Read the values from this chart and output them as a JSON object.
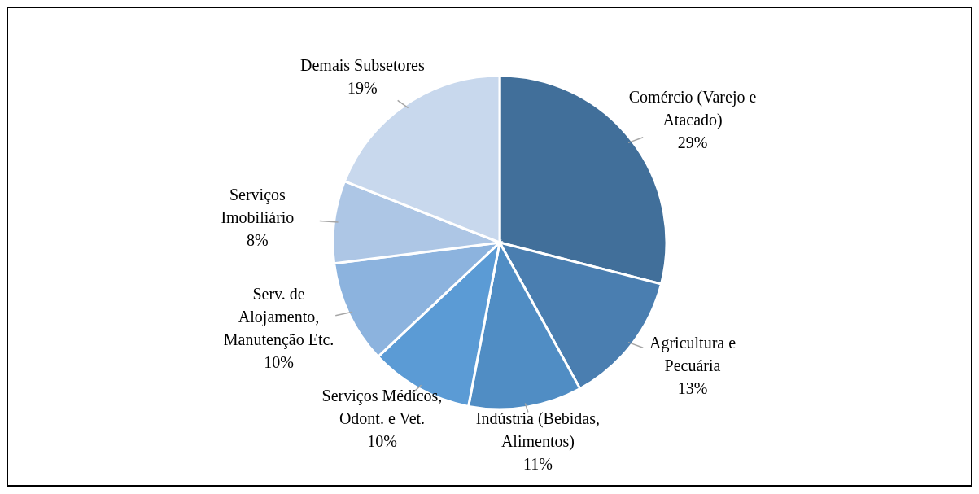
{
  "chart_data": {
    "type": "pie",
    "categories": [
      "Comércio (Varejo e Atacado)",
      "Agricultura e Pecuária",
      "Indústria (Bebidas, Alimentos)",
      "Serviços Médicos, Odont. e Vet.",
      "Serv. de Alojamento, Manutenção Etc.",
      "Serviços Imobiliário",
      "Demais Subsetores"
    ],
    "values": [
      29,
      13,
      11,
      10,
      10,
      8,
      19
    ],
    "colors": [
      "#416f9a",
      "#4a7eb0",
      "#508dc4",
      "#5b9bd5",
      "#8cb3de",
      "#adc6e5",
      "#c8d8ed"
    ],
    "value_labels": [
      "29%",
      "13%",
      "11%",
      "10%",
      "10%",
      "8%",
      "19%"
    ]
  }
}
